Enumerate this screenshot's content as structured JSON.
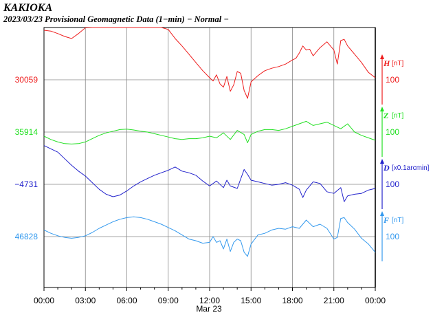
{
  "chart_data": {
    "type": "line",
    "title": "KAKIOKA",
    "subtitle": "2023/03/23  Provisional Geomagnetic Data (1−min)  − Normal −",
    "xlabel": "Mar 23",
    "x_ticks": [
      "00:00",
      "03:00",
      "06:00",
      "09:00",
      "12:00",
      "15:00",
      "18:00",
      "21:00",
      "00:00"
    ],
    "xlim_hours": [
      0,
      24
    ],
    "grid": true,
    "series": [
      {
        "name": "H",
        "unit": "[nT]",
        "baseline_label": "30059",
        "scale_label": "100",
        "color": "#ee1c1c",
        "x": [
          0,
          0.5,
          1,
          1.5,
          2,
          2.5,
          3,
          3.5,
          4,
          4.5,
          5,
          5.5,
          6,
          6.5,
          7,
          7.5,
          8,
          8.5,
          9,
          9.5,
          10,
          10.5,
          11,
          11.5,
          12,
          12.25,
          12.5,
          12.75,
          13,
          13.25,
          13.5,
          13.75,
          14,
          14.25,
          14.5,
          14.75,
          15,
          15.5,
          16,
          16.5,
          17,
          17.5,
          18,
          18.25,
          18.5,
          18.75,
          19,
          19.25,
          19.5,
          19.75,
          20,
          20.5,
          21,
          21.25,
          21.5,
          21.75,
          22,
          22.5,
          23,
          23.5,
          24
        ],
        "values": [
          120,
          118,
          112,
          105,
          100,
          112,
          126,
          140,
          152,
          162,
          172,
          180,
          186,
          190,
          188,
          180,
          165,
          145,
          122,
          100,
          82,
          62,
          42,
          22,
          5,
          -3,
          12,
          -10,
          -18,
          8,
          -28,
          -12,
          20,
          16,
          -26,
          -45,
          -5,
          10,
          22,
          28,
          32,
          38,
          48,
          52,
          65,
          82,
          72,
          74,
          58,
          68,
          78,
          92,
          72,
          38,
          95,
          98,
          82,
          62,
          42,
          18,
          5
        ]
      },
      {
        "name": "Z",
        "unit": "[nT]",
        "baseline_label": "35914",
        "scale_label": "100",
        "color": "#22e022",
        "x": [
          0,
          0.5,
          1,
          1.5,
          2,
          2.5,
          3,
          3.5,
          4,
          4.5,
          5,
          5.5,
          6,
          6.5,
          7,
          7.5,
          8,
          8.5,
          9,
          9.5,
          10,
          10.5,
          11,
          11.5,
          12,
          12.5,
          13,
          13.5,
          14,
          14.5,
          14.75,
          15,
          15.5,
          16,
          16.5,
          17,
          17.5,
          18,
          18.5,
          19,
          19.5,
          20,
          20.5,
          21,
          21.5,
          22,
          22.5,
          23,
          23.5,
          24
        ],
        "values": [
          -10,
          -18,
          -24,
          -28,
          -29,
          -28,
          -24,
          -16,
          -8,
          -2,
          2,
          6,
          7,
          5,
          2,
          0,
          -4,
          -8,
          -12,
          -16,
          -18,
          -16,
          -16,
          -14,
          -10,
          -14,
          -2,
          -18,
          4,
          -6,
          -26,
          -6,
          2,
          6,
          6,
          4,
          8,
          14,
          20,
          26,
          16,
          20,
          24,
          16,
          8,
          20,
          0,
          -8,
          -14,
          -20
        ]
      },
      {
        "name": "D",
        "unit": "[x0.1arcmin]",
        "baseline_label": "−4731",
        "scale_label": "100",
        "color": "#2222cc",
        "x": [
          0,
          0.5,
          1,
          1.5,
          2,
          2.5,
          3,
          3.5,
          4,
          4.5,
          5,
          5.5,
          6,
          6.5,
          7,
          7.5,
          8,
          8.5,
          9,
          9.5,
          10,
          10.5,
          11,
          11.5,
          12,
          12.5,
          13,
          13.25,
          13.5,
          14,
          14.5,
          14.75,
          15,
          15.5,
          16,
          16.5,
          17,
          17.5,
          18,
          18.5,
          18.75,
          19,
          19.5,
          20,
          20.5,
          21,
          21.5,
          21.75,
          22,
          22.5,
          23,
          23.5,
          24
        ],
        "values": [
          94,
          86,
          78,
          62,
          46,
          32,
          20,
          4,
          -12,
          -24,
          -30,
          -26,
          -16,
          -4,
          6,
          14,
          22,
          28,
          34,
          42,
          32,
          28,
          22,
          8,
          -4,
          8,
          -8,
          10,
          -4,
          -10,
          36,
          24,
          10,
          6,
          2,
          -2,
          0,
          4,
          -2,
          -12,
          -32,
          -14,
          6,
          2,
          -18,
          -22,
          -8,
          -42,
          -28,
          -24,
          -22,
          -14,
          -10
        ]
      },
      {
        "name": "F",
        "unit": "[nT]",
        "baseline_label": "46828",
        "scale_label": "100",
        "color": "#3399ee",
        "x": [
          0,
          0.5,
          1,
          1.5,
          2,
          2.5,
          3,
          3.5,
          4,
          4.5,
          5,
          5.5,
          6,
          6.5,
          7,
          7.5,
          8,
          8.5,
          9,
          9.5,
          10,
          10.5,
          11,
          11.5,
          12,
          12.25,
          12.5,
          12.75,
          13,
          13.25,
          13.5,
          13.75,
          14,
          14.25,
          14.5,
          14.75,
          15,
          15.5,
          16,
          16.5,
          17,
          17.5,
          18,
          18.5,
          19,
          19.5,
          20,
          20.5,
          21,
          21.25,
          21.5,
          21.75,
          22,
          22.5,
          23,
          23.5,
          24
        ],
        "values": [
          16,
          8,
          2,
          -2,
          -4,
          -2,
          2,
          10,
          20,
          28,
          36,
          42,
          46,
          48,
          46,
          42,
          36,
          30,
          22,
          14,
          4,
          -6,
          -10,
          -16,
          -14,
          0,
          -14,
          -10,
          -30,
          -6,
          -36,
          -14,
          -6,
          -10,
          -38,
          -48,
          -18,
          4,
          8,
          16,
          20,
          18,
          24,
          20,
          40,
          24,
          30,
          20,
          -6,
          -2,
          44,
          46,
          34,
          18,
          -4,
          -18,
          -38
        ]
      }
    ]
  }
}
